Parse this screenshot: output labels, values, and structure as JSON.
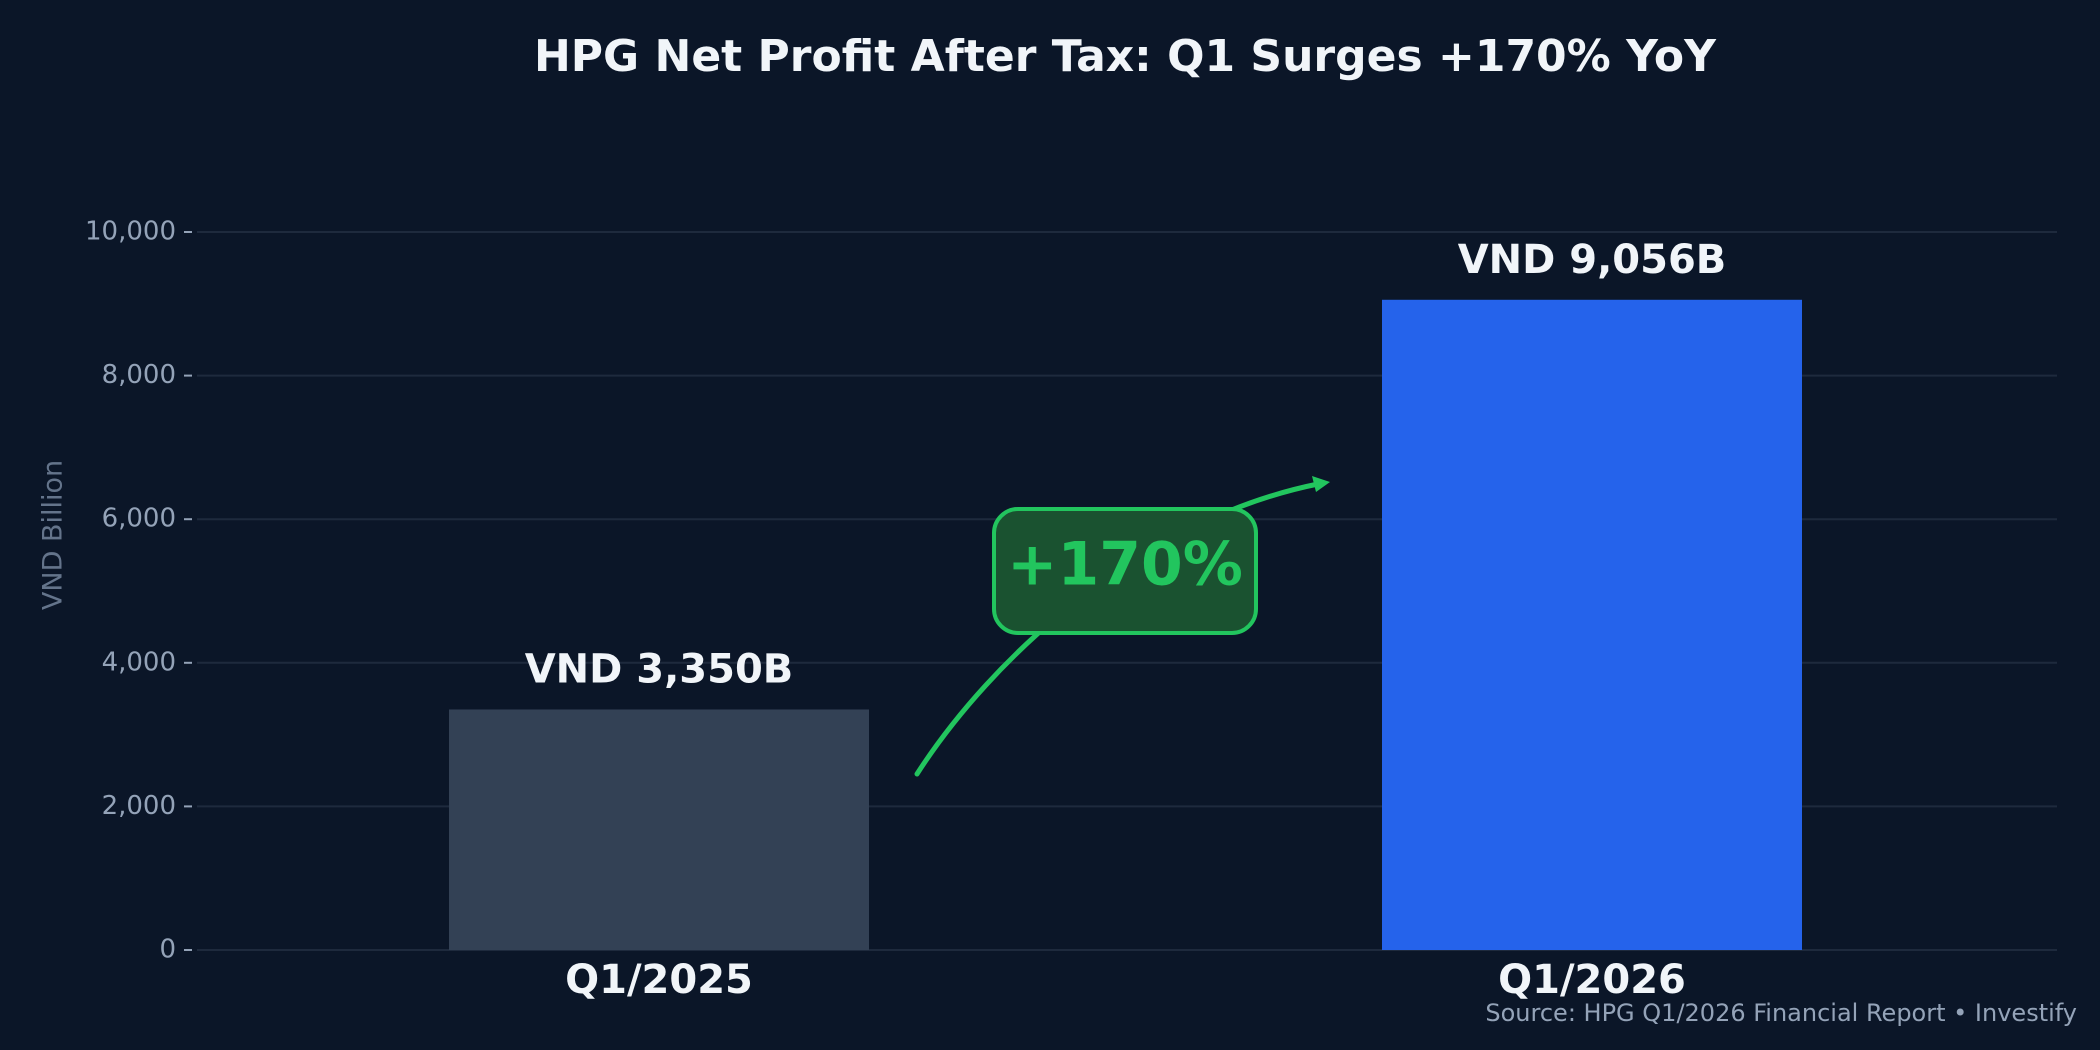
{
  "chart_data": {
    "type": "bar",
    "title": "HPG Net Profit After Tax: Q1 Surges +170% YoY",
    "y_label": "VND Billion",
    "categories": [
      "Q1/2025",
      "Q1/2026"
    ],
    "values": [
      3350,
      9056
    ],
    "value_labels": [
      "VND 3,350B",
      "VND 9,056B"
    ],
    "colors": [
      "#334155",
      "#2563eb"
    ],
    "ylim": [
      0,
      10000
    ],
    "yticks": [
      0,
      {
        "value": 2000,
        "label": "2,000"
      },
      {
        "value": 4000,
        "label": "4,000"
      },
      {
        "value": 6000,
        "label": "6,000"
      },
      {
        "value": 8000,
        "label": "8,000"
      },
      {
        "value": 10000,
        "label": "10,000"
      }
    ],
    "grid": true,
    "annotation": "+170%",
    "source": "Source: HPG Q1/2026 Financial Report  •  Investify"
  }
}
